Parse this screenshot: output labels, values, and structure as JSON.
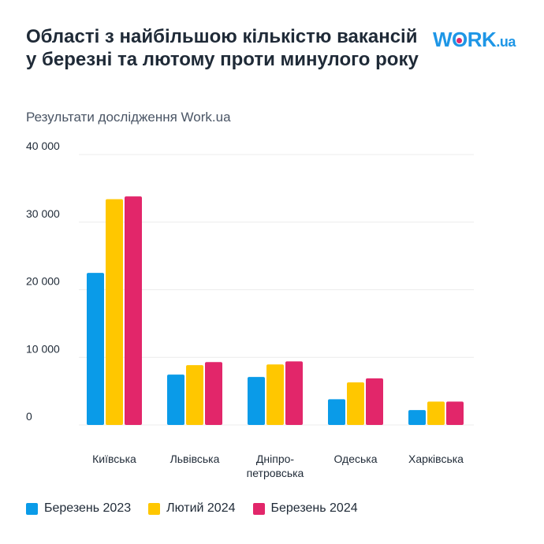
{
  "header": {
    "title": "Області з найбільшою кількістю вакансій у березні та лютому проти минулого року",
    "subtitle": "Результати дослідження Work.ua",
    "logo": "WORK.ua"
  },
  "chart_data": {
    "type": "bar",
    "title": "Області з найбільшою кількістю вакансій у березні та лютому проти минулого року",
    "subtitle": "Результати дослідження Work.ua",
    "categories": [
      "Київська",
      "Львівська",
      "Дніпро-петровська",
      "Одеська",
      "Харківська"
    ],
    "category_lines": [
      [
        "Київська"
      ],
      [
        "Львівська"
      ],
      [
        "Дніпро-",
        "петровська"
      ],
      [
        "Одеська"
      ],
      [
        "Харківська"
      ]
    ],
    "series": [
      {
        "name": "Березень 2023",
        "color": "#0a9be8",
        "values": [
          22500,
          7450,
          7100,
          3800,
          2200
        ]
      },
      {
        "name": "Лютий 2024",
        "color": "#ffc700",
        "values": [
          33400,
          8850,
          8950,
          6300,
          3450
        ]
      },
      {
        "name": "Березень 2024",
        "color": "#e2266a",
        "values": [
          33800,
          9300,
          9400,
          6900,
          3450
        ]
      }
    ],
    "yticks": [
      0,
      10000,
      20000,
      30000,
      40000
    ],
    "ytick_labels": [
      "0",
      "10 000",
      "20 000",
      "30 000",
      "40 000"
    ],
    "ylim": [
      0,
      40000
    ],
    "grid": true,
    "legend_position": "bottom"
  }
}
